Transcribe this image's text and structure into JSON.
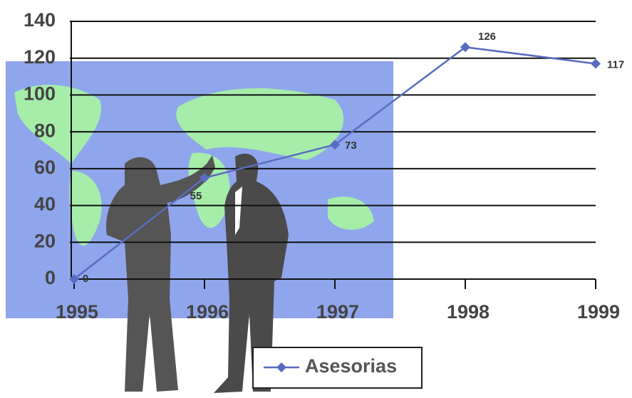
{
  "chart_data": {
    "type": "line",
    "categories": [
      "1995",
      "1996",
      "1997",
      "1998",
      "1999"
    ],
    "series": [
      {
        "name": "Asesorias",
        "color": "#5a6cc0",
        "values": [
          0,
          55,
          73,
          126,
          117
        ]
      }
    ],
    "ylim": [
      0,
      140
    ],
    "yticks": [
      0,
      20,
      40,
      60,
      80,
      100,
      120,
      140
    ],
    "grid": true,
    "legend": "bottom",
    "data_labels": true
  }
}
